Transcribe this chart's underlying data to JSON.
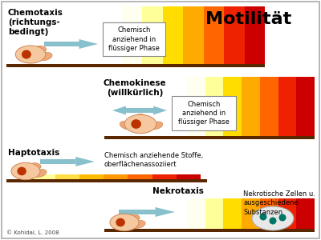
{
  "title": "Motilität",
  "bg": "#ffffff",
  "border_color": "#aaaaaa",
  "grad8": [
    "#ffffff",
    "#fffff0",
    "#ffff99",
    "#ffdd00",
    "#ffaa00",
    "#ff6600",
    "#ee2200",
    "#cc0000"
  ],
  "surface_grad8": [
    "#ffffff",
    "#ffff99",
    "#ffdd44",
    "#ffbb00",
    "#ff9900",
    "#ff6600",
    "#ee2200",
    "#cc0000"
  ],
  "nekro_grad8": [
    "#ffffff",
    "#fffff0",
    "#ffff99",
    "#ffdd00",
    "#ffaa00",
    "#ff6600",
    "#ee2200",
    "#cc0000"
  ],
  "arrow_color": "#88c0cc",
  "cell_body": "#f5c8a0",
  "cell_nuc": "#bb3300",
  "cell_pod": "#f0a878",
  "bar_color": "#5a2800",
  "box_bg": "#ffffff",
  "necrotic_body": "#e8e8e8",
  "necrotic_dot": "#007766",
  "copyright": "© Kohidai, L. 2008",
  "s1_label": "Chemotaxis\n(richtungs-\nbedingt)",
  "s1_box_text": "Chemisch\nanziehend in\nflüssiger Phase",
  "s2_label": "Chemokinese\n(willkürlich)",
  "s2_box_text": "Chemisch\nanziehend in\nflüssiger Phase",
  "s3_label": "Haptotaxis",
  "s3_text": "Chemisch anziehende Stoffe,\noberflächenassoziiert",
  "s4_label": "Nekrotaxis",
  "s4_text": "Nekrotische Zellen u.\nausgeschiedene\nSubstanzen"
}
